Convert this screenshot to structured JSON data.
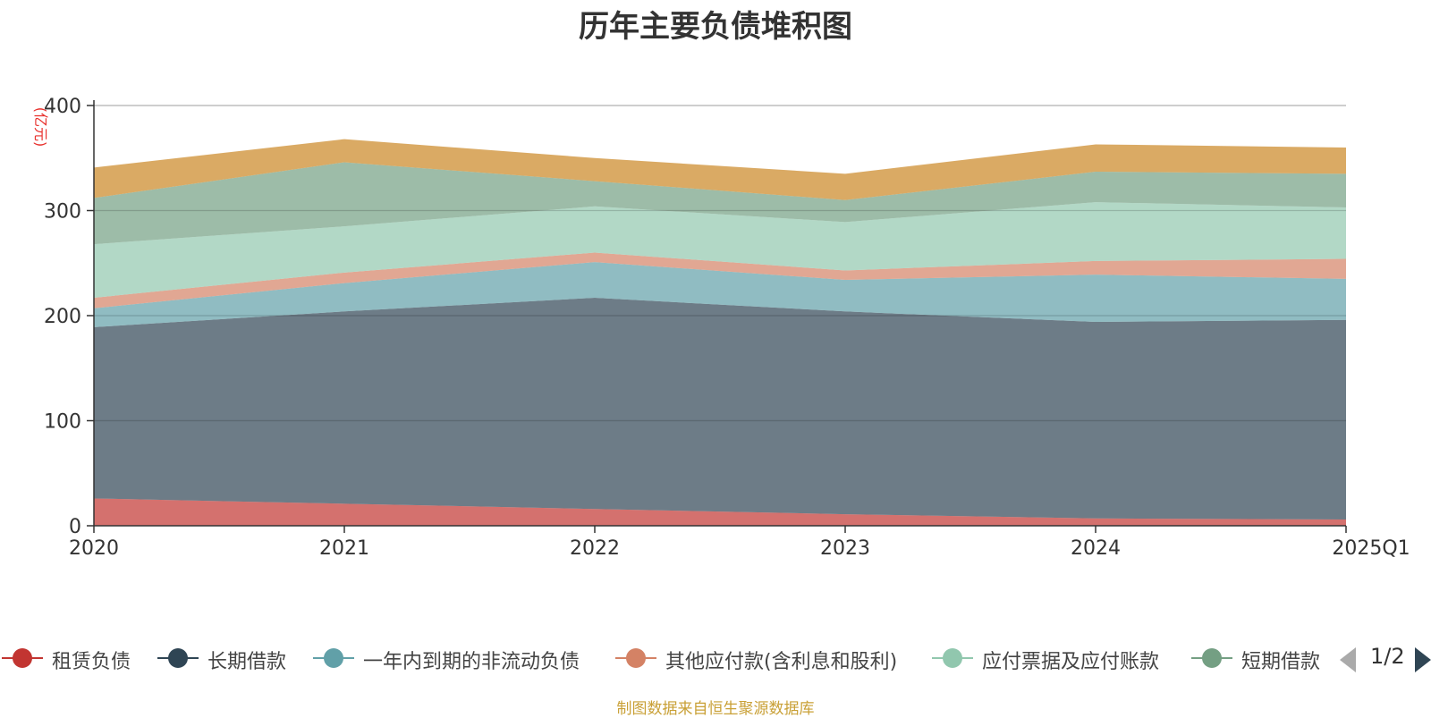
{
  "chart_data": {
    "type": "area",
    "stacked": true,
    "title": "历年主要负债堆积图",
    "ylabel": "(亿元)",
    "xlabel": "",
    "categories": [
      "2020",
      "2021",
      "2022",
      "2023",
      "2024",
      "2025Q1"
    ],
    "ylim": [
      0,
      400
    ],
    "yticks": [
      0,
      100,
      200,
      300,
      400
    ],
    "grid": true,
    "series": [
      {
        "name": "租赁负债",
        "color": "#c23531",
        "values": [
          26,
          21,
          16,
          11,
          7,
          6
        ]
      },
      {
        "name": "长期借款",
        "color": "#2f4554",
        "values": [
          163,
          183,
          201,
          193,
          187,
          190
        ]
      },
      {
        "name": "一年内到期的非流动负债",
        "color": "#61a0a8",
        "values": [
          18,
          27,
          34,
          30,
          45,
          39
        ]
      },
      {
        "name": "其他应付款(含利息和股利)",
        "color": "#d48265",
        "values": [
          10,
          10,
          9,
          9,
          13,
          19
        ]
      },
      {
        "name": "应付票据及应付账款",
        "color": "#91c7ae",
        "values": [
          51,
          44,
          44,
          46,
          56,
          49
        ]
      },
      {
        "name": "短期借款",
        "color": "#749f83",
        "values": [
          44,
          61,
          24,
          21,
          29,
          32
        ]
      },
      {
        "name": "",
        "color": "#ca8622",
        "values": [
          29,
          22,
          22,
          25,
          26,
          25
        ]
      }
    ]
  },
  "legend": {
    "items": [
      "租赁负债",
      "长期借款",
      "一年内到期的非流动负债",
      "其他应付款(含利息和股利)",
      "应付票据及应付账款",
      "短期借款"
    ],
    "colors": [
      "#c23531",
      "#2f4554",
      "#61a0a8",
      "#d48265",
      "#91c7ae",
      "#749f83"
    ],
    "page": "1/2"
  },
  "footer": "制图数据来自恒生聚源数据库"
}
